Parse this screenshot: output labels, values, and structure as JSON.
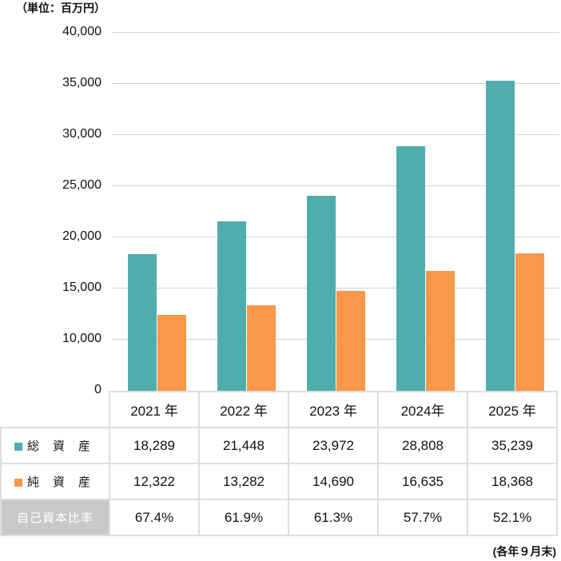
{
  "chart_data": {
    "type": "bar",
    "unit_label": "（単位：百万円）",
    "categories": [
      "2021 年",
      "2022 年",
      "2023 年",
      "2024年",
      "2025 年"
    ],
    "y_ticks": [
      "40,000",
      "35,000",
      "30,000",
      "25,000",
      "20,000",
      "15,000",
      "10,000",
      "0"
    ],
    "y_tick_values": [
      40000,
      35000,
      30000,
      25000,
      20000,
      15000,
      10000,
      0
    ],
    "ylim": [
      0,
      40000
    ],
    "axis_break": "between 0 and 10,000",
    "series": [
      {
        "name": "総　資　産",
        "color": "#4fadad",
        "values": [
          18289,
          21448,
          23972,
          28808,
          35239
        ],
        "labels": [
          "18,289",
          "21,448",
          "23,972",
          "28,808",
          "35,239"
        ]
      },
      {
        "name": "純　資　産",
        "color": "#f8984a",
        "values": [
          12322,
          13282,
          14690,
          16635,
          18368
        ],
        "labels": [
          "12,322",
          "13,282",
          "14,690",
          "16,635",
          "18,368"
        ]
      }
    ],
    "ratio": {
      "name": "自己資本比率",
      "labels": [
        "67.4%",
        "61.9%",
        "61.3%",
        "57.7%",
        "52.1%"
      ]
    },
    "note": "(各年９月末)"
  }
}
